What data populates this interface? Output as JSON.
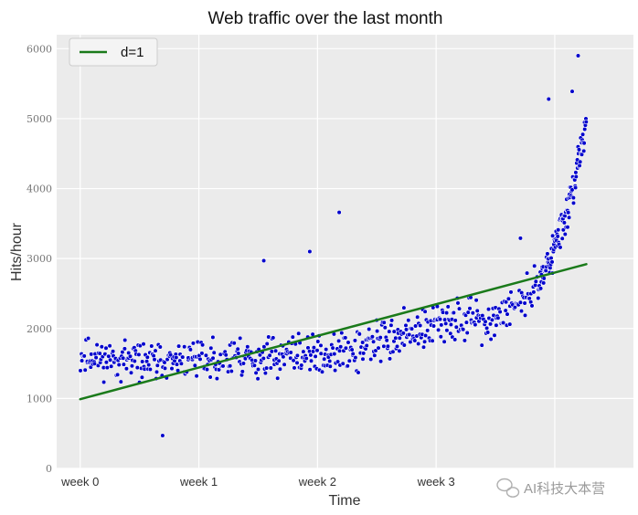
{
  "chart_data": {
    "type": "scatter",
    "title": "Web traffic over the last month",
    "xlabel": "Time",
    "ylabel": "Hits/hour",
    "xlim": [
      -200,
      4700
    ],
    "ylim": [
      0,
      6200
    ],
    "x_ticks": [
      {
        "value": 0,
        "label": "week 0"
      },
      {
        "value": 1,
        "label": "week 1"
      },
      {
        "value": 2,
        "label": "week 2"
      },
      {
        "value": 3,
        "label": "week 3"
      },
      {
        "value": 4,
        "label": ""
      }
    ],
    "hours_per_week": 1008,
    "y_ticks": [
      0,
      1000,
      2000,
      3000,
      4000,
      5000,
      6000
    ],
    "grid": true,
    "legend": {
      "position": "top-left",
      "entries": [
        {
          "label": "d=1",
          "color": "#1a7a1a"
        }
      ]
    },
    "fit_line": {
      "name": "d=1",
      "x": [
        0,
        4300
      ],
      "y": [
        990,
        2920
      ],
      "color": "#1a7a1a"
    },
    "scatter_series": {
      "name": "hits",
      "color": "#0000cc",
      "segments": [
        {
          "x_start": 0,
          "x_end": 800,
          "n": 120,
          "y_start": 1600,
          "y_end": 1500,
          "spread": 380,
          "seed": 11
        },
        {
          "x_start": 800,
          "x_end": 2400,
          "n": 230,
          "y_start": 1550,
          "y_end": 1650,
          "spread": 420,
          "seed": 23
        },
        {
          "x_start": 2400,
          "x_end": 3400,
          "n": 150,
          "y_start": 1750,
          "y_end": 2200,
          "spread": 420,
          "seed": 37
        },
        {
          "x_start": 3400,
          "x_end": 3900,
          "n": 70,
          "y_start": 2000,
          "y_end": 2600,
          "spread": 380,
          "seed": 41
        },
        {
          "x_start": 3900,
          "x_end": 4300,
          "n": 110,
          "y_start": 2800,
          "y_end": 4900,
          "spread": 420,
          "seed": 53
        }
      ],
      "outliers": [
        {
          "x": 1560,
          "y": 2970
        },
        {
          "x": 1950,
          "y": 3100
        },
        {
          "x": 2200,
          "y": 3660
        },
        {
          "x": 700,
          "y": 470
        },
        {
          "x": 4230,
          "y": 5900
        },
        {
          "x": 4180,
          "y": 5390
        },
        {
          "x": 3980,
          "y": 5280
        },
        {
          "x": 3740,
          "y": 3290
        }
      ]
    }
  },
  "watermark": {
    "text": "AI科技大本营"
  }
}
